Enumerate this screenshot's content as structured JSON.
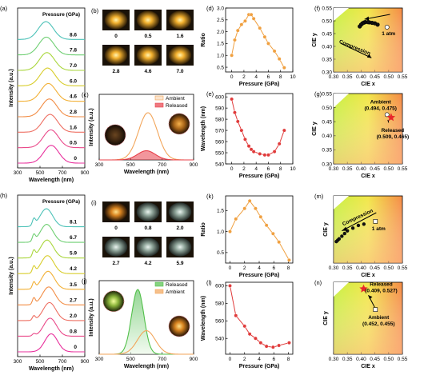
{
  "panels": [
    {
      "id": "a",
      "letter": "(a)",
      "type": "stacked-spectra",
      "xlabel": "Wavelength (nm)",
      "ylabel": "Intensity (a.u.)",
      "xticks": [
        "300",
        "500",
        "700",
        "900"
      ],
      "xrange": [
        300,
        900
      ],
      "legend_title": "Pressure (GPa)",
      "pressures": [
        "0",
        "0.5",
        "1.6",
        "2.8",
        "4.6",
        "6.0",
        "7.0",
        "7.8",
        "8.6"
      ],
      "colors": [
        "#e8309c",
        "#ea4a8a",
        "#ee6f62",
        "#f28d45",
        "#f2b035",
        "#d8cd2c",
        "#a9d63c",
        "#6fcf73",
        "#4dc2b8"
      ]
    },
    {
      "id": "b",
      "letter": "(b)",
      "type": "photo-grid",
      "labels": [
        "0",
        "0.5",
        "1.6",
        "2.8",
        "4.6",
        "7.0"
      ]
    },
    {
      "id": "c",
      "letter": "(c)",
      "type": "spectrum-compare",
      "xlabel": "Wavelength (nm)",
      "ylabel": "Intensity (a.u.)",
      "xticks": [
        "300",
        "500",
        "700",
        "900"
      ],
      "legend": [
        "Ambient",
        "Released"
      ],
      "colors": [
        "#f2a55a",
        "#e8404a"
      ]
    },
    {
      "id": "d",
      "letter": "(d)",
      "type": "line",
      "xlabel": "Pressure (GPa)",
      "ylabel": "Ratio",
      "xticks": [
        "0",
        "2",
        "4",
        "6",
        "8",
        "10"
      ],
      "yticks": [
        "0.5",
        "1.0",
        "1.5",
        "2.0",
        "2.5",
        "3.0"
      ],
      "xlim": [
        -1,
        10
      ],
      "ylim": [
        0.3,
        3.0
      ],
      "color": "#f0a040"
    },
    {
      "id": "e",
      "letter": "(e)",
      "type": "line",
      "xlabel": "Pressure (GPa)",
      "ylabel": "Wavelength (nm)",
      "xticks": [
        "0",
        "2",
        "4",
        "6",
        "8",
        "10"
      ],
      "yticks": [
        "540",
        "550",
        "560",
        "570",
        "580",
        "590",
        "600"
      ],
      "xlim": [
        -1,
        10
      ],
      "ylim": [
        540,
        603
      ],
      "color": "#e03a3a"
    },
    {
      "id": "f",
      "letter": "(f)",
      "type": "cie",
      "xlabel": "CIE x",
      "ylabel": "CIE y",
      "xticks": [
        "0.30",
        "0.35",
        "0.40",
        "0.45",
        "0.50",
        "0.55"
      ],
      "yticks": [
        "0.30",
        "0.35",
        "0.40",
        "0.45",
        "0.50",
        "0.55"
      ],
      "annotations": [
        "Compression",
        "1 atm"
      ]
    },
    {
      "id": "g",
      "letter": "(g)",
      "type": "cie",
      "xlabel": "CIE x",
      "ylabel": "CIE y",
      "xticks": [
        "0.30",
        "0.35",
        "0.40",
        "0.45",
        "0.50",
        "0.55"
      ],
      "yticks": [
        "0.30",
        "0.35",
        "0.40",
        "0.45",
        "0.50",
        "0.55"
      ],
      "annotations": [
        "Ambient",
        "(0.494, 0.475)",
        "Released",
        "(0.509, 0.465)"
      ]
    },
    {
      "id": "h",
      "letter": "(h)",
      "type": "stacked-spectra",
      "xlabel": "Wavelength (nm)",
      "ylabel": "Intensity (a.u.)",
      "xticks": [
        "300",
        "500",
        "700",
        "900"
      ],
      "xrange": [
        300,
        900
      ],
      "legend_title": "Pressure (GPa)",
      "pressures": [
        "0",
        "0.8",
        "2.0",
        "2.7",
        "3.5",
        "4.2",
        "5.9",
        "6.7",
        "8.1"
      ],
      "colors": [
        "#e8309c",
        "#ea4a8a",
        "#ee6f62",
        "#f28d45",
        "#f2b035",
        "#d8cd2c",
        "#a9d63c",
        "#6fcf73",
        "#4dc2b8"
      ]
    },
    {
      "id": "i",
      "letter": "(i)",
      "type": "photo-grid",
      "labels": [
        "0",
        "0.8",
        "2.0",
        "2.7",
        "4.2",
        "5.9"
      ]
    },
    {
      "id": "j",
      "letter": "(j)",
      "type": "spectrum-compare",
      "xlabel": "Wavelength (nm)",
      "ylabel": "Intensity (a.u.)",
      "xticks": [
        "300",
        "500",
        "700",
        "900"
      ],
      "legend": [
        "Released",
        "Ambient"
      ],
      "colors": [
        "#52c04a",
        "#f2a55a"
      ]
    },
    {
      "id": "k",
      "letter": "(k)",
      "type": "line",
      "xlabel": "Pressure (GPa)",
      "ylabel": "Ratio",
      "xticks": [
        "0",
        "2",
        "4",
        "6",
        "8"
      ],
      "yticks": [
        "0.5",
        "1.0",
        "1.5"
      ],
      "xlim": [
        -0.6,
        8.6
      ],
      "ylim": [
        0.25,
        1.85
      ],
      "color": "#f0a040"
    },
    {
      "id": "l",
      "letter": "(l)",
      "type": "line",
      "xlabel": "Pressure (GPa)",
      "ylabel": "Wavelength (nm)",
      "xticks": [
        "0",
        "2",
        "4",
        "6",
        "8"
      ],
      "yticks": [
        "540",
        "560",
        "580",
        "600"
      ],
      "xlim": [
        -0.6,
        8.6
      ],
      "ylim": [
        522,
        604
      ],
      "color": "#e03a3a"
    },
    {
      "id": "m",
      "letter": "(m)",
      "type": "cie",
      "xlabel": "CIE x",
      "ylabel": "CIE y",
      "xticks": [
        "0.30",
        "0.35",
        "0.40",
        "0.45",
        "0.50",
        "0.55"
      ],
      "yticks": [],
      "annotations": [
        "Compression",
        "1 atm"
      ]
    },
    {
      "id": "n",
      "letter": "(n)",
      "type": "cie",
      "xlabel": "CIE x",
      "ylabel": "CIE y",
      "xticks": [
        "0.30",
        "0.35",
        "0.40",
        "0.45",
        "0.50",
        "0.55"
      ],
      "yticks": [],
      "annotations": [
        "Released",
        "(0.409, 0.527)",
        "Ambient",
        "(0.452, 0.455)"
      ]
    }
  ],
  "chart_data": [
    {
      "panel": "d",
      "type": "scatter",
      "x": [
        0,
        0.5,
        1.0,
        1.6,
        2.2,
        2.8,
        3.2,
        3.6,
        4.6,
        5.4,
        6.0,
        7.0,
        7.8,
        8.6
      ],
      "y": [
        1.0,
        1.65,
        2.05,
        2.3,
        2.45,
        2.72,
        2.72,
        2.55,
        2.15,
        1.78,
        1.5,
        1.18,
        0.85,
        0.48
      ]
    },
    {
      "panel": "e",
      "type": "scatter",
      "x": [
        0,
        0.5,
        1.0,
        1.6,
        2.2,
        2.8,
        3.2,
        3.6,
        4.6,
        5.4,
        6.0,
        7.0,
        7.8,
        8.6
      ],
      "y": [
        598,
        586,
        578,
        570,
        562,
        556,
        553,
        551,
        549,
        548,
        548,
        551,
        558,
        570
      ]
    },
    {
      "panel": "k",
      "type": "scatter",
      "x": [
        0,
        0.8,
        2.0,
        2.7,
        3.5,
        4.2,
        5.0,
        5.9,
        6.7,
        8.1
      ],
      "y": [
        1.0,
        1.3,
        1.55,
        1.73,
        1.55,
        1.35,
        1.15,
        0.95,
        0.75,
        0.32
      ]
    },
    {
      "panel": "l",
      "type": "scatter",
      "x": [
        0,
        0.8,
        2.0,
        2.7,
        3.5,
        4.2,
        5.0,
        5.9,
        6.7,
        8.1
      ],
      "y": [
        600,
        566,
        554,
        545,
        540,
        535,
        531,
        530,
        532,
        535
      ]
    },
    {
      "panel": "f",
      "type": "scatter",
      "x": [
        0.494,
        0.46,
        0.45,
        0.44,
        0.43,
        0.425,
        0.415,
        0.41,
        0.405,
        0.4,
        0.395
      ],
      "y": [
        0.475,
        0.485,
        0.49,
        0.492,
        0.494,
        0.495,
        0.495,
        0.493,
        0.49,
        0.485,
        0.478
      ]
    },
    {
      "panel": "g",
      "type": "scatter",
      "x": [
        0.494,
        0.509
      ],
      "y": [
        0.475,
        0.465
      ]
    },
    {
      "panel": "m",
      "type": "scatter",
      "x": [
        0.452,
        0.41,
        0.39,
        0.37,
        0.35,
        0.34,
        0.33,
        0.32,
        0.315,
        0.31
      ],
      "y": [
        0.455,
        0.445,
        0.44,
        0.43,
        0.42,
        0.41,
        0.4,
        0.39,
        0.385,
        0.38
      ]
    },
    {
      "panel": "n",
      "type": "scatter",
      "x": [
        0.452,
        0.409
      ],
      "y": [
        0.455,
        0.527
      ]
    }
  ]
}
